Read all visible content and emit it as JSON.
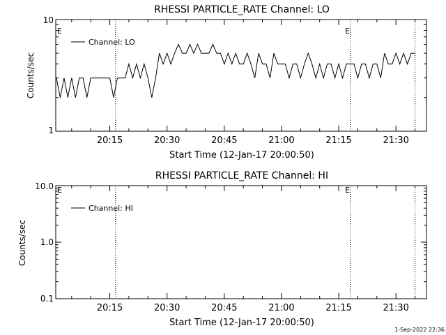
{
  "footer_date": "1-Sep-2022 22:36",
  "colors": {
    "background": "#ffffff",
    "foreground": "#000000"
  },
  "chart_data": [
    {
      "type": "line",
      "title": "RHESSI PARTICLE_RATE Channel: LO",
      "xlabel": "Start Time (12-Jan-17 20:00:50)",
      "ylabel": "Counts/sec",
      "yscale": "log",
      "ylim": [
        1,
        10
      ],
      "ytick_labels": [
        "1",
        "10"
      ],
      "xlim": [
        "20:00:50",
        "21:38:00"
      ],
      "xtick_labels": [
        "20:15",
        "20:30",
        "20:45",
        "21:00",
        "21:15",
        "21:30"
      ],
      "vlines": [
        "20:16:30",
        "21:18:00",
        "21:35:00"
      ],
      "eclipse_markers": [
        {
          "label": "E",
          "time": "20:00:50"
        },
        {
          "label": "E",
          "time": "21:18:00"
        }
      ],
      "legend": {
        "entries": [
          "Channel: LO"
        ],
        "position": "top-left"
      },
      "series": [
        {
          "name": "Channel: LO",
          "x": [
            "20:01",
            "20:02",
            "20:03",
            "20:04",
            "20:05",
            "20:06",
            "20:07",
            "20:08",
            "20:09",
            "20:10",
            "20:11",
            "20:12",
            "20:13",
            "20:14",
            "20:15",
            "20:16",
            "20:17",
            "20:18",
            "20:19",
            "20:20",
            "20:21",
            "20:22",
            "20:23",
            "20:24",
            "20:25",
            "20:26",
            "20:27",
            "20:28",
            "20:29",
            "20:30",
            "20:31",
            "20:32",
            "20:33",
            "20:34",
            "20:35",
            "20:36",
            "20:37",
            "20:38",
            "20:39",
            "20:40",
            "20:41",
            "20:42",
            "20:43",
            "20:44",
            "20:45",
            "20:46",
            "20:47",
            "20:48",
            "20:49",
            "20:50",
            "20:51",
            "20:52",
            "20:53",
            "20:54",
            "20:55",
            "20:56",
            "20:57",
            "20:58",
            "20:59",
            "21:00",
            "21:01",
            "21:02",
            "21:03",
            "21:04",
            "21:05",
            "21:06",
            "21:07",
            "21:08",
            "21:09",
            "21:10",
            "21:11",
            "21:12",
            "21:13",
            "21:14",
            "21:15",
            "21:16",
            "21:17",
            "21:18",
            "21:19",
            "21:20",
            "21:21",
            "21:22",
            "21:23",
            "21:24",
            "21:25",
            "21:26",
            "21:27",
            "21:28",
            "21:29",
            "21:30",
            "21:31",
            "21:32",
            "21:33",
            "21:34",
            "21:35"
          ],
          "y": [
            3,
            2,
            3,
            2,
            3,
            2,
            3,
            3,
            2,
            3,
            3,
            3,
            3,
            3,
            3,
            2,
            3,
            3,
            3,
            4,
            3,
            4,
            3,
            4,
            3,
            2,
            3,
            5,
            4,
            5,
            4,
            5,
            6,
            5,
            5,
            6,
            5,
            6,
            5,
            5,
            5,
            6,
            5,
            5,
            4,
            5,
            4,
            5,
            4,
            4,
            5,
            4,
            3,
            5,
            4,
            4,
            3,
            5,
            4,
            4,
            4,
            3,
            4,
            4,
            3,
            4,
            5,
            4,
            3,
            4,
            3,
            4,
            4,
            3,
            4,
            3,
            4,
            4,
            4,
            3,
            4,
            4,
            3,
            4,
            4,
            3,
            5,
            4,
            4,
            5,
            4,
            5,
            4,
            5,
            5
          ]
        }
      ]
    },
    {
      "type": "line",
      "title": "RHESSI PARTICLE_RATE Channel: HI",
      "xlabel": "Start Time (12-Jan-17 20:00:50)",
      "ylabel": "Counts/sec",
      "yscale": "log",
      "ylim": [
        0.1,
        10
      ],
      "ytick_labels": [
        "0.1",
        "1.0",
        "10.0"
      ],
      "xlim": [
        "20:00:50",
        "21:38:00"
      ],
      "xtick_labels": [
        "20:15",
        "20:30",
        "20:45",
        "21:00",
        "21:15",
        "21:30"
      ],
      "vlines": [
        "20:16:30",
        "21:18:00",
        "21:35:00"
      ],
      "eclipse_markers": [
        {
          "label": "E",
          "time": "20:00:50"
        },
        {
          "label": "E",
          "time": "21:18:00"
        }
      ],
      "legend": {
        "entries": [
          "Channel: HI"
        ],
        "position": "top-left"
      },
      "series": [
        {
          "name": "Channel: HI",
          "x": [],
          "y": []
        }
      ]
    }
  ]
}
